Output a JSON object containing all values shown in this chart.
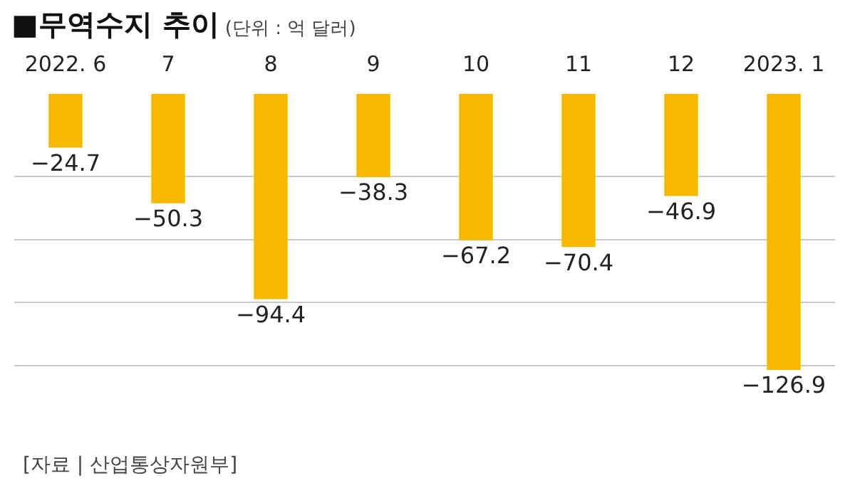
{
  "chart_data": {
    "type": "bar",
    "title": "■무역수지 추이",
    "subtitle": "(단위 : 억 달러)",
    "categories": [
      "2022. 6",
      "7",
      "8",
      "9",
      "10",
      "11",
      "12",
      "2023. 1"
    ],
    "values": [
      -24.7,
      -50.3,
      -94.4,
      -38.3,
      -67.2,
      -70.4,
      -46.9,
      -126.9
    ],
    "color": "#f7b900",
    "yticks": [
      {
        "value": -38,
        "label": null
      },
      {
        "value": -67,
        "label": null
      },
      {
        "value": -96,
        "label": null
      },
      {
        "value": -125,
        "label": null
      }
    ],
    "grid": "y",
    "tick_labels": "x",
    "data_labels": true,
    "annotations": [
      "[자료 | 산업통상자원부]"
    ]
  }
}
